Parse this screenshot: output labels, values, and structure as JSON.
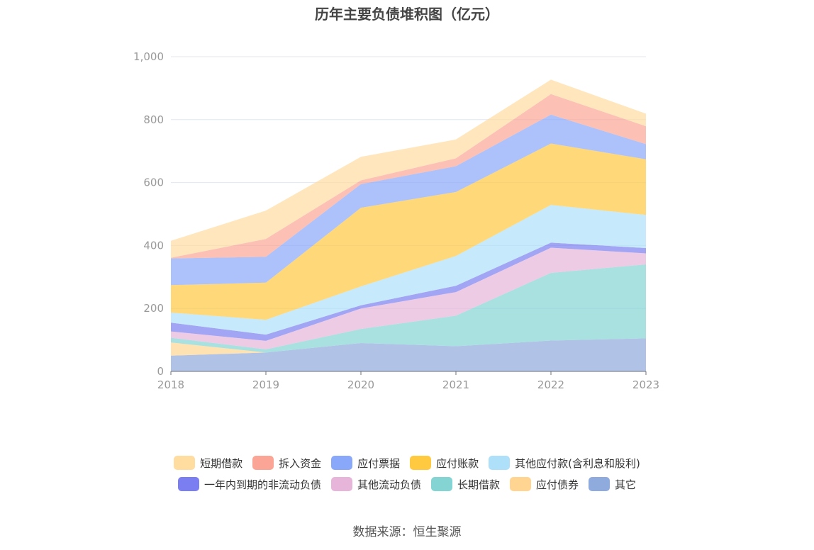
{
  "chart_data": {
    "type": "area",
    "title": "历年主要负债堆积图（亿元）",
    "x": [
      "2018",
      "2019",
      "2020",
      "2021",
      "2022",
      "2023"
    ],
    "ylim": [
      0,
      1000
    ],
    "yticks": [
      "0",
      "200",
      "400",
      "600",
      "800",
      "1,000"
    ],
    "grid": true,
    "stacked": true,
    "legend_position": "bottom",
    "series": [
      {
        "name": "其它",
        "color": "#8FAADC",
        "values": [
          50,
          60,
          90,
          80,
          98,
          105
        ]
      },
      {
        "name": "应付债券",
        "color": "#FFD591",
        "values": [
          42,
          0,
          0,
          0,
          0,
          0
        ]
      },
      {
        "name": "长期借款",
        "color": "#84D4D4",
        "values": [
          15,
          10,
          45,
          97,
          215,
          235
        ]
      },
      {
        "name": "其他流动负债",
        "color": "#E7B5DA",
        "values": [
          20,
          27,
          65,
          75,
          80,
          35
        ]
      },
      {
        "name": "一年内到期的非流动负债",
        "color": "#7B7EF0",
        "values": [
          28,
          20,
          10,
          20,
          16,
          17
        ]
      },
      {
        "name": "其他应付款(含利息和股利)",
        "color": "#AEE0FA",
        "values": [
          32,
          47,
          60,
          95,
          120,
          105
        ]
      },
      {
        "name": "应付账款",
        "color": "#FFC940",
        "values": [
          87,
          118,
          250,
          203,
          195,
          177
        ]
      },
      {
        "name": "应付票据",
        "color": "#8AA8FA",
        "values": [
          85,
          82,
          75,
          82,
          92,
          48
        ]
      },
      {
        "name": "拆入资金",
        "color": "#FBA596",
        "values": [
          2,
          57,
          12,
          25,
          65,
          57
        ]
      },
      {
        "name": "短期借款",
        "color": "#FFDCA0",
        "values": [
          54,
          90,
          75,
          60,
          46,
          40
        ]
      }
    ]
  },
  "legend": {
    "row1": [
      {
        "name": "短期借款",
        "color": "#FFDCA0"
      },
      {
        "name": "拆入资金",
        "color": "#FBA596"
      },
      {
        "name": "应付票据",
        "color": "#8AA8FA"
      },
      {
        "name": "应付账款",
        "color": "#FFC940"
      },
      {
        "name": "其他应付款(含利息和股利)",
        "color": "#AEE0FA"
      }
    ],
    "row2": [
      {
        "name": "一年内到期的非流动负债",
        "color": "#7B7EF0"
      },
      {
        "name": "其他流动负债",
        "color": "#E7B5DA"
      },
      {
        "name": "长期借款",
        "color": "#84D4D4"
      },
      {
        "name": "应付债券",
        "color": "#FFD591"
      },
      {
        "name": "其它",
        "color": "#8FAADC"
      }
    ]
  },
  "source_text": "数据来源：恒生聚源"
}
